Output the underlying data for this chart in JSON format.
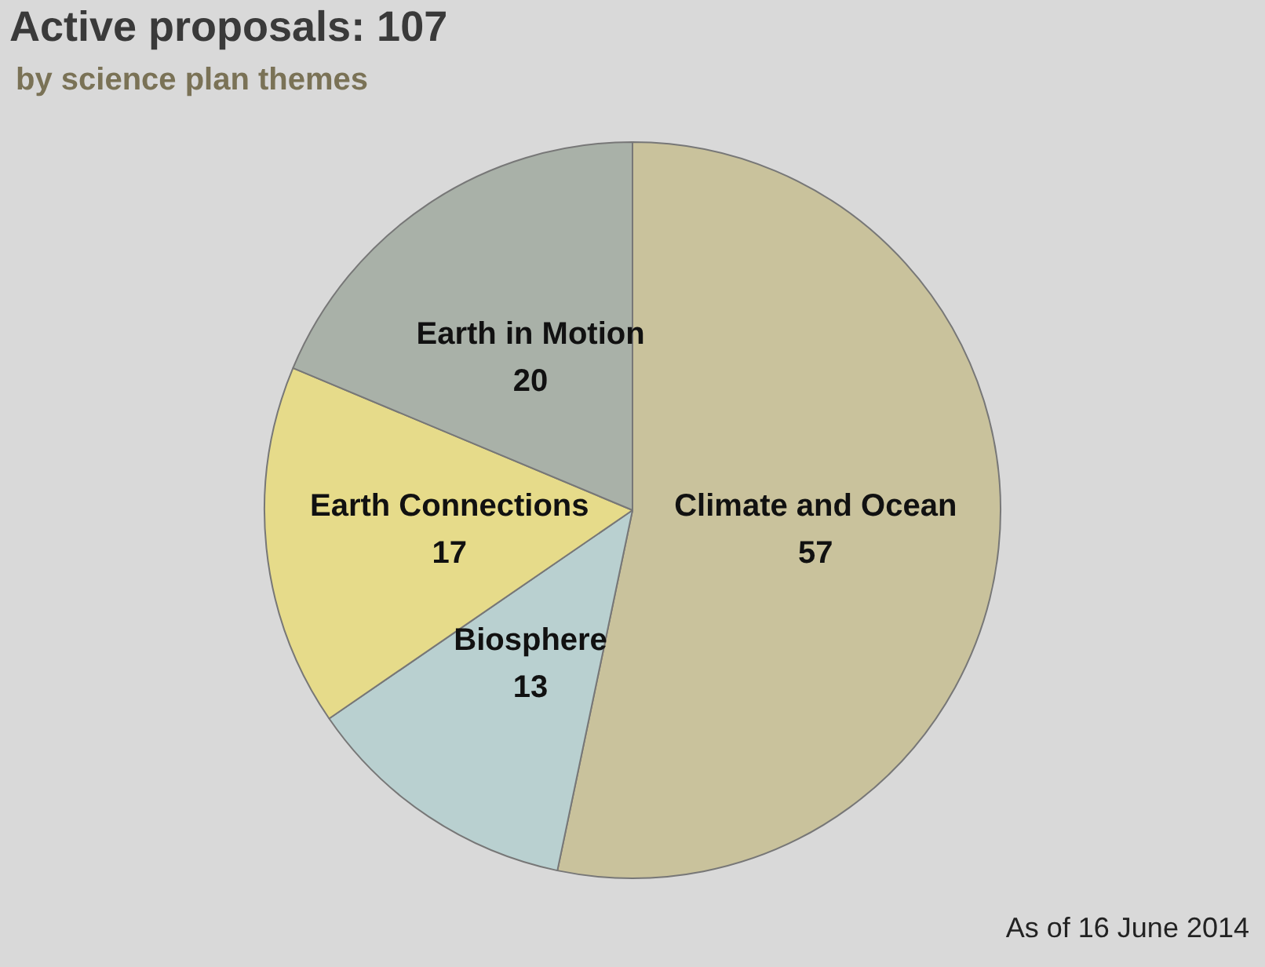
{
  "chart_data": {
    "type": "pie",
    "title": "Active proposals: 107",
    "subtitle": "by science plan themes",
    "categories": [
      "Climate and Ocean",
      "Biosphere",
      "Earth Connections",
      "Earth in Motion"
    ],
    "values": [
      57,
      13,
      17,
      20
    ],
    "colors": [
      "#c9c29c",
      "#b9d0d0",
      "#e6db8a",
      "#a9b1a8"
    ],
    "data_labels": true,
    "legend": false,
    "annotations": [
      "As of 16 June 2014"
    ]
  }
}
